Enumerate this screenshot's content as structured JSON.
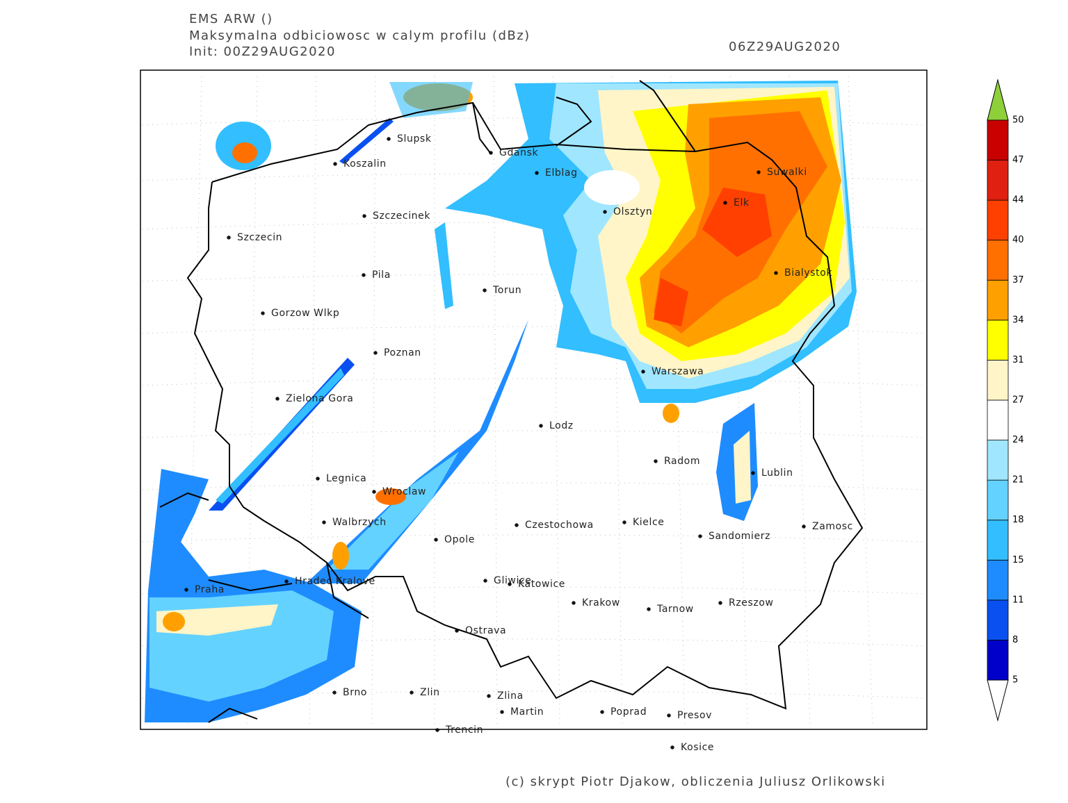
{
  "header": {
    "model": "EMS ARW ()",
    "product": "Maksymalna odbiciowosc w calym profilu (dBz)",
    "init": "Init: 00Z29AUG2020",
    "valid": "06Z29AUG2020"
  },
  "map": {
    "cities": [
      "Slupsk",
      "Koszalin",
      "Gdansk",
      "Elblag",
      "Suwalki",
      "Elk",
      "Olsztyn",
      "Szczecinek",
      "Szczecin",
      "Pila",
      "Torun",
      "Bialystok",
      "Gorzow Wlkp",
      "Poznan",
      "Warszawa",
      "Zielona Gora",
      "Lodz",
      "Radom",
      "Lublin",
      "Legnica",
      "Wroclaw",
      "Walbrzych",
      "Czestochowa",
      "Kielce",
      "Zamosc",
      "Opole",
      "Sandomierz",
      "Hradec Kralove",
      "Gliwice",
      "Katowice",
      "Praha",
      "Krakow",
      "Rzeszow",
      "Tarnow",
      "Ostrava",
      "Brno",
      "Zlin",
      "Zlina",
      "Martin",
      "Poprad",
      "Presov",
      "Trencin",
      "Kosice"
    ]
  },
  "colorbar": {
    "levels": [
      5,
      8,
      11,
      15,
      18,
      21,
      24,
      27,
      31,
      34,
      37,
      40,
      44,
      47,
      50
    ],
    "colors": [
      "#0000c8",
      "#0a50f0",
      "#1e8cff",
      "#32beff",
      "#64d2ff",
      "#a0e6ff",
      "#ffffff",
      "#fff5c8",
      "#ffff00",
      "#ffa000",
      "#ff7000",
      "#ff4000",
      "#e02010",
      "#c80000"
    ]
  },
  "footer": "(c) skrypt Piotr Djakow, obliczenia Juliusz Orlikowski"
}
